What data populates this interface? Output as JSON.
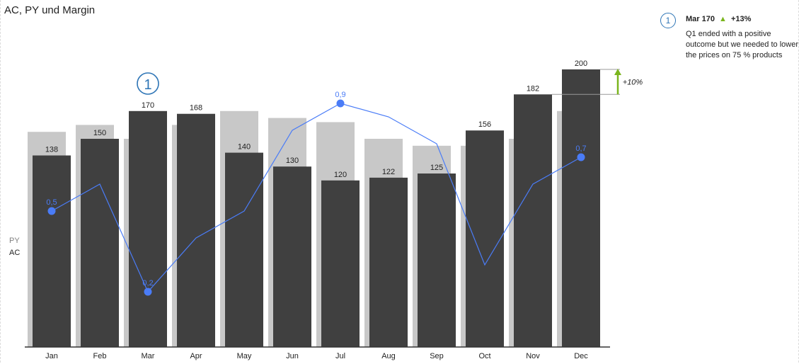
{
  "title": "AC, PY und Margin",
  "legend": {
    "py": "PY",
    "ac": "AC"
  },
  "annotation": {
    "number": "1",
    "head_value": "Mar 170",
    "head_delta": "+13%",
    "arrow_icon": "triangle-up-icon",
    "body": "Q1 ended with a positive outcome but we needed to lower the prices on 75 % products"
  },
  "colors": {
    "ac": "#404040",
    "py": "#c8c8c8",
    "margin_line": "#4a7cf7",
    "annotation": "#2e75b6",
    "delta_positive": "#7ab51d"
  },
  "chart_data": {
    "type": "bar",
    "categories": [
      "Jan",
      "Feb",
      "Mar",
      "Apr",
      "May",
      "Jun",
      "Jul",
      "Aug",
      "Sep",
      "Oct",
      "Nov",
      "Dec"
    ],
    "series": [
      {
        "name": "AC",
        "values": [
          138,
          150,
          170,
          168,
          140,
          130,
          120,
          122,
          125,
          156,
          182,
          200
        ]
      },
      {
        "name": "PY",
        "values": [
          155,
          160,
          150,
          160,
          170,
          165,
          162,
          150,
          145,
          145,
          150,
          170
        ]
      }
    ],
    "line_series": {
      "name": "Margin",
      "values": [
        0.5,
        0.6,
        0.2,
        0.4,
        0.5,
        0.8,
        0.9,
        0.85,
        0.75,
        0.3,
        0.6,
        0.7
      ],
      "labeled_points": [
        0,
        2,
        6,
        11
      ],
      "labels": [
        "0,5",
        "0,2",
        "0,9",
        "0,7"
      ],
      "range": [
        0,
        1.2
      ]
    },
    "ylim": [
      0,
      200
    ],
    "variance_marker": {
      "from_category": "Nov",
      "to_category": "Dec",
      "label": "+10%"
    },
    "annotation_marker": {
      "category": "Mar",
      "label": "1"
    }
  }
}
